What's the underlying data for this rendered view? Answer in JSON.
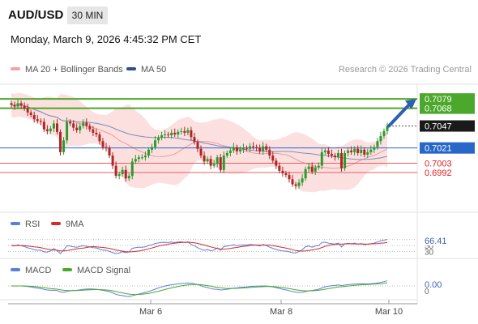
{
  "header": {
    "pair": "AUD/USD",
    "timeframe": "30 MIN",
    "datetime": "Monday, March 9, 2026 4:45:32 PM CET"
  },
  "legend": {
    "bollinger": {
      "label": "MA 20 + Bollinger Bands",
      "color": "#f4a3a3"
    },
    "ma50": {
      "label": "MA 50",
      "color": "#2d4f8e"
    },
    "credit": "Research © 2026 Trading Central"
  },
  "rsi_legend": {
    "rsi": "RSI",
    "ma9": "9MA"
  },
  "macd_legend": {
    "macd": "MACD",
    "signal": "MACD Signal"
  },
  "chart_data": [
    {
      "type": "candlestick",
      "ylim": [
        0.6945,
        0.7105
      ],
      "x_labels": [
        "Mar 6",
        "Mar 8",
        "Mar 10"
      ],
      "levels": [
        {
          "value": 0.7079,
          "label": "0.7079",
          "kind": "resistance"
        },
        {
          "value": 0.7068,
          "label": "0.7068",
          "kind": "resistance"
        },
        {
          "value": 0.7047,
          "label": "0.7047",
          "kind": "last"
        },
        {
          "value": 0.7021,
          "label": "0.7021",
          "kind": "pivot"
        },
        {
          "value": 0.7003,
          "label": "0.7003",
          "kind": "support"
        },
        {
          "value": 0.6992,
          "label": "0.6992",
          "kind": "support"
        }
      ],
      "closes": [
        0.7072,
        0.707,
        0.7074,
        0.7071,
        0.7068,
        0.7063,
        0.706,
        0.7055,
        0.7053,
        0.7052,
        0.7043,
        0.7041,
        0.7044,
        0.705,
        0.704,
        0.7016,
        0.703,
        0.7052,
        0.705,
        0.7045,
        0.7042,
        0.7047,
        0.7051,
        0.7047,
        0.7043,
        0.7039,
        0.7037,
        0.7029,
        0.7022,
        0.7021,
        0.7012,
        0.7,
        0.6988,
        0.699,
        0.6995,
        0.6985,
        0.6988,
        0.7005,
        0.7008,
        0.701,
        0.701,
        0.7012,
        0.7019,
        0.7022,
        0.703,
        0.7033,
        0.7036,
        0.7037,
        0.7036,
        0.7039,
        0.7037,
        0.704,
        0.7041,
        0.7039,
        0.7042,
        0.7034,
        0.7028,
        0.702,
        0.7012,
        0.7005,
        0.7008,
        0.7,
        0.7002,
        0.701,
        0.6995,
        0.7012,
        0.7015,
        0.7018,
        0.7022,
        0.7017,
        0.7019,
        0.7021,
        0.702,
        0.7023,
        0.7022,
        0.7021,
        0.7017,
        0.7023,
        0.7019,
        0.7012,
        0.7006,
        0.7,
        0.6994,
        0.6991,
        0.6989,
        0.6984,
        0.6978,
        0.6976,
        0.698,
        0.6985,
        0.6996,
        0.6999,
        0.6993,
        0.6998,
        0.7,
        0.7016,
        0.7018,
        0.7014,
        0.7012,
        0.701,
        0.7015,
        0.6997,
        0.7015,
        0.7018,
        0.7016,
        0.702,
        0.7015,
        0.7019,
        0.7013,
        0.7016,
        0.7019,
        0.7022,
        0.7029,
        0.7035,
        0.7041,
        0.7047
      ]
    },
    {
      "type": "line",
      "name": "RSI",
      "ylim": [
        20,
        80
      ],
      "levels": [
        70,
        50,
        30
      ],
      "last_value": "66.41"
    },
    {
      "type": "line",
      "name": "MACD",
      "last_value": "0.00"
    }
  ]
}
